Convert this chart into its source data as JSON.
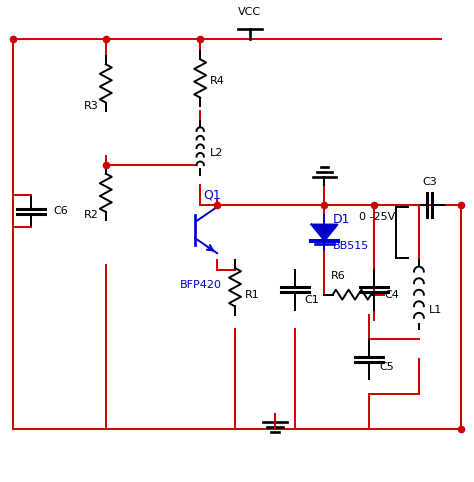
{
  "bg_color": "#ffffff",
  "wire_color": "#cc0000",
  "comp_color": "#000000",
  "blue_color": "#0000cc",
  "figsize": [
    4.74,
    4.82
  ],
  "dpi": 100,
  "xlim": [
    0,
    474
  ],
  "ylim": [
    0,
    482
  ]
}
